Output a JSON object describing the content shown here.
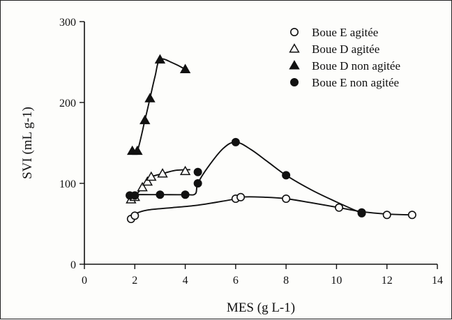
{
  "chart_data": {
    "type": "scatter",
    "title": "",
    "xlabel": "MES (g L-1)",
    "ylabel": "SVI (mL g-1)",
    "xlim": [
      0,
      14
    ],
    "ylim": [
      0,
      300
    ],
    "xticks": [
      0,
      2,
      4,
      6,
      8,
      10,
      12,
      14
    ],
    "yticks": [
      0,
      100,
      200,
      300
    ],
    "grid": false,
    "legend_position": "top-right",
    "series": [
      {
        "name": "Boue E agitée",
        "marker": "open-circle",
        "x": [
          1.85,
          2.0,
          6.0,
          6.2,
          8.0,
          10.1,
          11.0,
          12.0,
          13.0
        ],
        "y": [
          56,
          60,
          81,
          83,
          81,
          70,
          64,
          61,
          61
        ],
        "curve": [
          [
            1.85,
            56
          ],
          [
            2.0,
            62
          ],
          [
            2.5,
            67
          ],
          [
            3.5,
            70
          ],
          [
            4.5,
            73
          ],
          [
            5.5,
            78
          ],
          [
            6.0,
            81
          ],
          [
            6.2,
            83
          ],
          [
            7.0,
            83
          ],
          [
            8.0,
            81
          ],
          [
            9.0,
            76
          ],
          [
            10.1,
            70
          ],
          [
            11.0,
            65
          ],
          [
            12.0,
            62
          ],
          [
            13.0,
            61
          ]
        ]
      },
      {
        "name": "Boue D agitée",
        "marker": "open-triangle",
        "x": [
          1.85,
          2.0,
          2.3,
          2.5,
          2.65,
          3.1,
          4.0
        ],
        "y": [
          80,
          83,
          95,
          102,
          108,
          112,
          115
        ],
        "curve": [
          [
            1.85,
            80
          ],
          [
            2.0,
            84
          ],
          [
            2.3,
            95
          ],
          [
            2.5,
            102
          ],
          [
            2.65,
            108
          ],
          [
            3.1,
            112
          ],
          [
            3.6,
            116
          ],
          [
            4.2,
            117
          ]
        ]
      },
      {
        "name": "Boue D non agitée",
        "marker": "filled-triangle",
        "x": [
          1.9,
          2.1,
          2.4,
          2.6,
          3.0,
          4.0
        ],
        "y": [
          140,
          140,
          178,
          205,
          253,
          241
        ],
        "curve": [
          [
            1.9,
            140
          ],
          [
            2.1,
            140
          ],
          [
            2.4,
            178
          ],
          [
            2.6,
            205
          ],
          [
            2.8,
            232
          ],
          [
            3.0,
            253
          ],
          [
            3.5,
            249
          ],
          [
            4.0,
            241
          ]
        ]
      },
      {
        "name": "Boue E non agitée",
        "marker": "filled-circle",
        "x": [
          1.8,
          2.0,
          3.0,
          4.0,
          4.5,
          4.5,
          6.0,
          8.0,
          11.0
        ],
        "y": [
          85,
          85,
          86,
          86,
          100,
          114,
          151,
          110,
          63
        ],
        "curve": [
          [
            1.8,
            85
          ],
          [
            2.0,
            86
          ],
          [
            3.0,
            86
          ],
          [
            4.0,
            86
          ],
          [
            4.4,
            87
          ],
          [
            4.5,
            100
          ],
          [
            4.9,
            120
          ],
          [
            5.5,
            143
          ],
          [
            6.0,
            151
          ],
          [
            6.6,
            142
          ],
          [
            7.3,
            126
          ],
          [
            8.0,
            110
          ],
          [
            9.0,
            92
          ],
          [
            10.0,
            77
          ],
          [
            11.0,
            63
          ]
        ]
      }
    ]
  }
}
